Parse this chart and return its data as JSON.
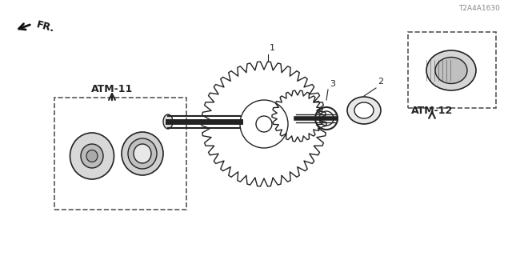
{
  "bg_color": "#ffffff",
  "title": "",
  "part_id": "T2A4A1630",
  "labels": {
    "1": [
      0.495,
      0.13
    ],
    "2": [
      0.625,
      0.52
    ],
    "3": [
      0.555,
      0.47
    ]
  },
  "atm11_text": "ATM-11",
  "atm12_text": "ATM-12",
  "fr_text": "FR.",
  "line_color": "#222222",
  "dashed_box_color": "#555555",
  "arrow_color": "#444444"
}
